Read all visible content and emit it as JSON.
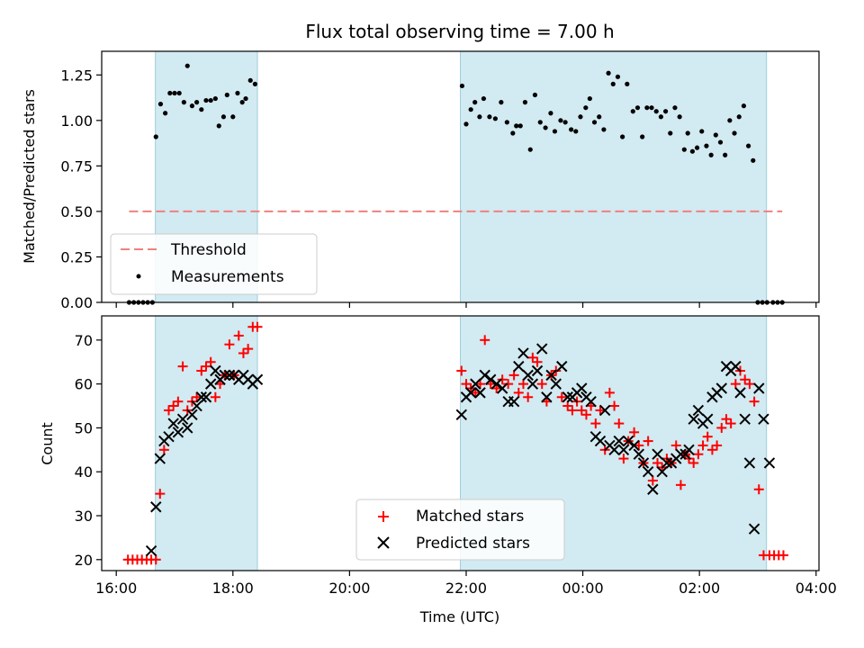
{
  "chart_data": [
    {
      "type": "scatter",
      "title": "Flux total observing time = 7.00 h",
      "xlabel": "",
      "ylabel": "Matched/Predicted stars",
      "xlim": [
        15.75,
        28.05
      ],
      "ylim": [
        0.0,
        1.38
      ],
      "x_unit": "hours UTC (values above 24 are the next day)",
      "x_ticks": [
        16,
        18,
        20,
        22,
        24,
        26,
        28
      ],
      "x_tick_labels": [
        "16:00",
        "18:00",
        "20:00",
        "22:00",
        "00:00",
        "02:00",
        "04:00"
      ],
      "x_ticks_labelled": false,
      "y_ticks": [
        0.0,
        0.25,
        0.5,
        0.75,
        1.0,
        1.25
      ],
      "y_tick_labels": [
        "0.00",
        "0.25",
        "0.50",
        "0.75",
        "1.00",
        "1.25"
      ],
      "shaded_regions": [
        {
          "x0": 16.67,
          "x1": 18.42,
          "color": "#add8e6"
        },
        {
          "x0": 21.9,
          "x1": 27.15,
          "color": "#add8e6"
        }
      ],
      "threshold": {
        "name": "Threshold",
        "y": 0.5,
        "x0": 16.22,
        "x1": 27.42,
        "color": "#f08080"
      },
      "legend": {
        "placement": "lower-left",
        "entries": [
          "Threshold",
          "Measurements"
        ]
      },
      "series": [
        {
          "name": "Measurements",
          "marker": "dot",
          "color": "#000000",
          "x": [
            16.22,
            16.3,
            16.38,
            16.46,
            16.54,
            16.62,
            16.68,
            16.76,
            16.84,
            16.92,
            17.0,
            17.08,
            17.16,
            17.22,
            17.3,
            17.38,
            17.46,
            17.54,
            17.62,
            17.7,
            17.76,
            17.84,
            17.9,
            18.0,
            18.08,
            18.16,
            18.22,
            18.3,
            18.38,
            21.93,
            22.0,
            22.08,
            22.15,
            22.23,
            22.3,
            22.4,
            22.5,
            22.6,
            22.7,
            22.8,
            22.86,
            22.93,
            23.01,
            23.1,
            23.18,
            23.27,
            23.36,
            23.45,
            23.52,
            23.62,
            23.7,
            23.8,
            23.88,
            23.96,
            24.05,
            24.12,
            24.2,
            24.28,
            24.36,
            24.44,
            24.52,
            24.6,
            24.68,
            24.76,
            24.86,
            24.94,
            25.02,
            25.1,
            25.18,
            25.26,
            25.34,
            25.42,
            25.5,
            25.58,
            25.66,
            25.74,
            25.8,
            25.88,
            25.96,
            26.04,
            26.12,
            26.2,
            26.28,
            26.36,
            26.44,
            26.52,
            26.6,
            26.68,
            26.76,
            26.84,
            26.92,
            27.0,
            27.08,
            27.16,
            27.26,
            27.34,
            27.42
          ],
          "y": [
            0.0,
            0.0,
            0.0,
            0.0,
            0.0,
            0.0,
            0.91,
            1.09,
            1.04,
            1.15,
            1.15,
            1.15,
            1.1,
            1.3,
            1.08,
            1.1,
            1.06,
            1.11,
            1.11,
            1.12,
            0.97,
            1.02,
            1.14,
            1.02,
            1.15,
            1.1,
            1.12,
            1.22,
            1.2,
            1.19,
            0.98,
            1.06,
            1.1,
            1.02,
            1.12,
            1.02,
            1.01,
            1.1,
            0.99,
            0.93,
            0.97,
            0.97,
            1.1,
            0.84,
            1.14,
            0.99,
            0.96,
            1.04,
            0.94,
            1.0,
            0.99,
            0.95,
            0.94,
            1.02,
            1.07,
            1.12,
            0.99,
            1.02,
            0.95,
            1.26,
            1.2,
            1.24,
            0.91,
            1.2,
            1.05,
            1.07,
            0.91,
            1.07,
            1.07,
            1.05,
            1.02,
            1.05,
            0.93,
            1.07,
            1.02,
            0.84,
            0.93,
            0.83,
            0.85,
            0.94,
            0.86,
            0.81,
            0.92,
            0.88,
            0.81,
            1.0,
            0.93,
            1.02,
            1.08,
            0.86,
            0.78,
            0.0,
            0.0,
            0.0,
            0.0,
            0.0,
            0.0
          ]
        }
      ]
    },
    {
      "type": "scatter",
      "title": "",
      "xlabel": "Time (UTC)",
      "ylabel": "Count",
      "xlim": [
        15.75,
        28.05
      ],
      "ylim": [
        17.5,
        75.5
      ],
      "x_unit": "hours UTC (values above 24 are the next day)",
      "x_ticks": [
        16,
        18,
        20,
        22,
        24,
        26,
        28
      ],
      "x_tick_labels": [
        "16:00",
        "18:00",
        "20:00",
        "22:00",
        "00:00",
        "02:00",
        "04:00"
      ],
      "y_ticks": [
        20,
        30,
        40,
        50,
        60,
        70
      ],
      "y_tick_labels": [
        "20",
        "30",
        "40",
        "50",
        "60",
        "70"
      ],
      "shaded_regions": [
        {
          "x0": 16.67,
          "x1": 18.42,
          "color": "#add8e6"
        },
        {
          "x0": 21.9,
          "x1": 27.15,
          "color": "#add8e6"
        }
      ],
      "legend": {
        "placement": "lower-center",
        "entries": [
          "Matched stars",
          "Predicted stars"
        ]
      },
      "series": [
        {
          "name": "Matched stars",
          "marker": "plus",
          "color": "#ff0000",
          "x": [
            16.2,
            16.28,
            16.36,
            16.44,
            16.52,
            16.6,
            16.68,
            16.75,
            16.82,
            16.9,
            16.98,
            17.06,
            17.14,
            17.22,
            17.3,
            17.38,
            17.46,
            17.54,
            17.62,
            17.7,
            17.78,
            17.86,
            17.94,
            18.02,
            18.1,
            18.18,
            18.26,
            18.34,
            18.42,
            21.92,
            22.0,
            22.08,
            22.16,
            22.24,
            22.32,
            22.42,
            22.52,
            22.62,
            22.72,
            22.82,
            22.9,
            22.98,
            23.06,
            23.14,
            23.22,
            23.3,
            23.38,
            23.46,
            23.54,
            23.64,
            23.74,
            23.82,
            23.9,
            23.98,
            24.06,
            24.14,
            24.22,
            24.3,
            24.38,
            24.46,
            24.54,
            24.62,
            24.7,
            24.78,
            24.88,
            24.96,
            25.04,
            25.12,
            25.2,
            25.28,
            25.36,
            25.44,
            25.52,
            25.6,
            25.68,
            25.76,
            25.82,
            25.9,
            25.98,
            26.06,
            26.14,
            26.22,
            26.3,
            26.38,
            26.46,
            26.54,
            26.62,
            26.7,
            26.78,
            26.86,
            26.94,
            27.02,
            27.1,
            27.2,
            27.28,
            27.36,
            27.44
          ],
          "y": [
            20,
            20,
            20,
            20,
            20,
            20,
            20,
            35,
            45,
            54,
            55,
            56,
            64,
            54,
            56,
            57,
            63,
            64,
            65,
            57,
            60,
            62,
            69,
            62,
            71,
            67,
            68,
            73,
            73,
            63,
            60,
            59,
            58,
            60,
            70,
            60,
            59,
            61,
            60,
            62,
            58,
            60,
            57,
            66,
            65,
            60,
            56,
            62,
            63,
            57,
            55,
            54,
            56,
            54,
            53,
            55,
            51,
            54,
            45,
            58,
            55,
            51,
            43,
            47,
            49,
            46,
            42,
            47,
            38,
            42,
            41,
            43,
            42,
            46,
            37,
            44,
            43,
            42,
            44,
            46,
            48,
            45,
            46,
            50,
            52,
            51,
            60,
            63,
            61,
            60,
            56,
            36,
            21,
            21,
            21,
            21,
            21
          ]
        },
        {
          "name": "Predicted stars",
          "marker": "x",
          "color": "#000000",
          "x": [
            16.6,
            16.68,
            16.75,
            16.82,
            16.9,
            16.98,
            17.06,
            17.14,
            17.22,
            17.3,
            17.38,
            17.46,
            17.54,
            17.62,
            17.7,
            17.78,
            17.86,
            17.94,
            18.02,
            18.1,
            18.18,
            18.26,
            18.34,
            18.42,
            21.92,
            22.0,
            22.08,
            22.16,
            22.24,
            22.32,
            22.42,
            22.52,
            22.62,
            22.72,
            22.82,
            22.9,
            22.98,
            23.06,
            23.14,
            23.22,
            23.3,
            23.38,
            23.46,
            23.54,
            23.64,
            23.74,
            23.82,
            23.9,
            23.98,
            24.06,
            24.14,
            24.22,
            24.3,
            24.38,
            24.46,
            24.54,
            24.62,
            24.7,
            24.78,
            24.88,
            24.96,
            25.04,
            25.12,
            25.2,
            25.28,
            25.36,
            25.44,
            25.52,
            25.6,
            25.68,
            25.76,
            25.82,
            25.9,
            25.98,
            26.06,
            26.14,
            26.22,
            26.3,
            26.38,
            26.46,
            26.54,
            26.62,
            26.7,
            26.78,
            26.86,
            26.94,
            27.02,
            27.1,
            27.2
          ],
          "y": [
            22,
            32,
            43,
            47,
            48,
            51,
            49,
            52,
            50,
            53,
            55,
            57,
            57,
            60,
            63,
            61,
            62,
            62,
            62,
            61,
            62,
            61,
            60,
            61,
            53,
            57,
            58,
            60,
            58,
            62,
            61,
            60,
            59,
            56,
            56,
            64,
            67,
            62,
            60,
            63,
            68,
            57,
            62,
            60,
            64,
            57,
            57,
            58,
            59,
            57,
            56,
            48,
            47,
            54,
            46,
            45,
            47,
            45,
            47,
            46,
            44,
            42,
            40,
            36,
            44,
            40,
            42,
            42,
            43,
            44,
            44,
            45,
            52,
            54,
            51,
            52,
            57,
            58,
            59,
            64,
            63,
            64,
            58,
            52,
            42,
            27,
            59,
            52,
            42
          ]
        }
      ]
    }
  ]
}
